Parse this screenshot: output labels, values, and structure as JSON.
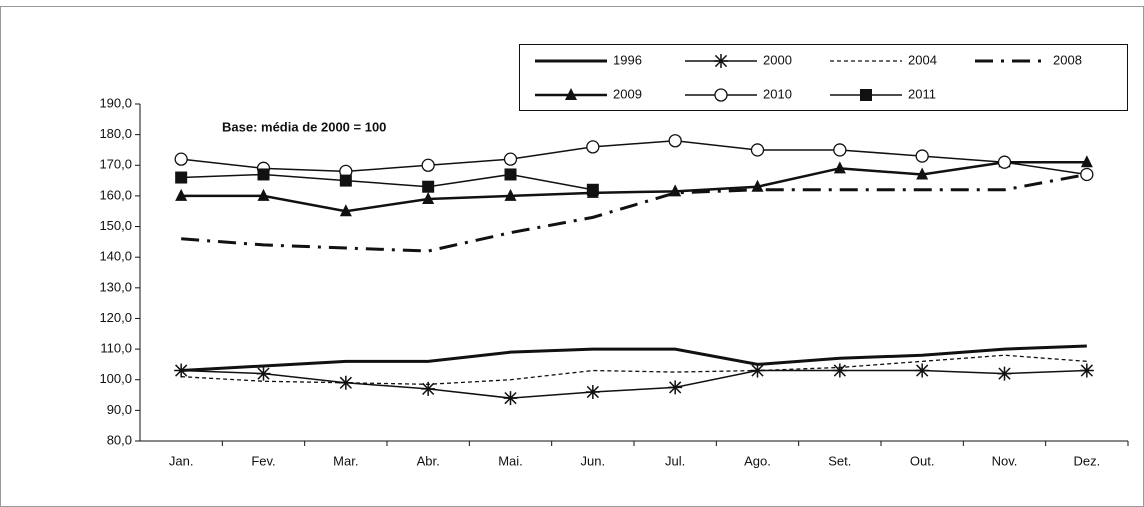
{
  "chart_data": {
    "type": "line",
    "annotation": "Base: média de 2000 = 100",
    "categories": [
      "Jan.",
      "Fev.",
      "Mar.",
      "Abr.",
      "Mai.",
      "Jun.",
      "Jul.",
      "Ago.",
      "Set.",
      "Out.",
      "Nov.",
      "Dez."
    ],
    "ylim": [
      80,
      190
    ],
    "yticks": [
      {
        "value": 80,
        "label": "80,0"
      },
      {
        "value": 90,
        "label": "90,0"
      },
      {
        "value": 100,
        "label": "100,0"
      },
      {
        "value": 110,
        "label": "110,0"
      },
      {
        "value": 120,
        "label": "120,0"
      },
      {
        "value": 130,
        "label": "130,0"
      },
      {
        "value": 140,
        "label": "140,0"
      },
      {
        "value": 150,
        "label": "150,0"
      },
      {
        "value": 160,
        "label": "160,0"
      },
      {
        "value": 170,
        "label": "170,0"
      },
      {
        "value": 180,
        "label": "180,0"
      },
      {
        "value": 190,
        "label": "190,0"
      }
    ],
    "grid": false,
    "legend": "top-right",
    "series": [
      {
        "name": "1996",
        "color": "#111111",
        "width": 3,
        "dash": "none",
        "marker": "none",
        "values": [
          103,
          104.5,
          106,
          106,
          109,
          110,
          110,
          105,
          107,
          108,
          110,
          111
        ]
      },
      {
        "name": "2000",
        "color": "#111111",
        "width": 1.5,
        "dash": "none",
        "marker": "asterisk",
        "values": [
          103,
          102,
          99,
          97,
          94,
          96,
          97.5,
          103,
          103,
          103,
          102,
          103
        ]
      },
      {
        "name": "2004",
        "color": "#111111",
        "width": 1.3,
        "dash": "4,3",
        "marker": "none",
        "values": [
          101,
          99.5,
          99,
          98.5,
          100,
          103,
          102.5,
          103,
          104,
          106,
          108,
          106
        ]
      },
      {
        "name": "2008",
        "color": "#111111",
        "width": 3,
        "dash": "18,8,3,8",
        "marker": "none",
        "values": [
          146,
          144,
          143,
          142,
          148,
          153,
          161,
          162,
          162,
          162,
          162,
          167
        ]
      },
      {
        "name": "2009",
        "color": "#111111",
        "width": 2.5,
        "dash": "none",
        "marker": "triangle",
        "values": [
          160,
          160,
          155,
          159,
          160,
          161,
          161.5,
          163,
          169,
          167,
          171,
          171
        ]
      },
      {
        "name": "2010",
        "color": "#111111",
        "width": 1.5,
        "dash": "none",
        "marker": "circle",
        "values": [
          172,
          169,
          168,
          170,
          172,
          176,
          178,
          175,
          175,
          173,
          171,
          167
        ]
      },
      {
        "name": "2011",
        "color": "#111111",
        "width": 1.5,
        "dash": "none",
        "marker": "square",
        "values": [
          166,
          167,
          165,
          163,
          167,
          162,
          null,
          null,
          null,
          null,
          null,
          null
        ]
      }
    ]
  }
}
